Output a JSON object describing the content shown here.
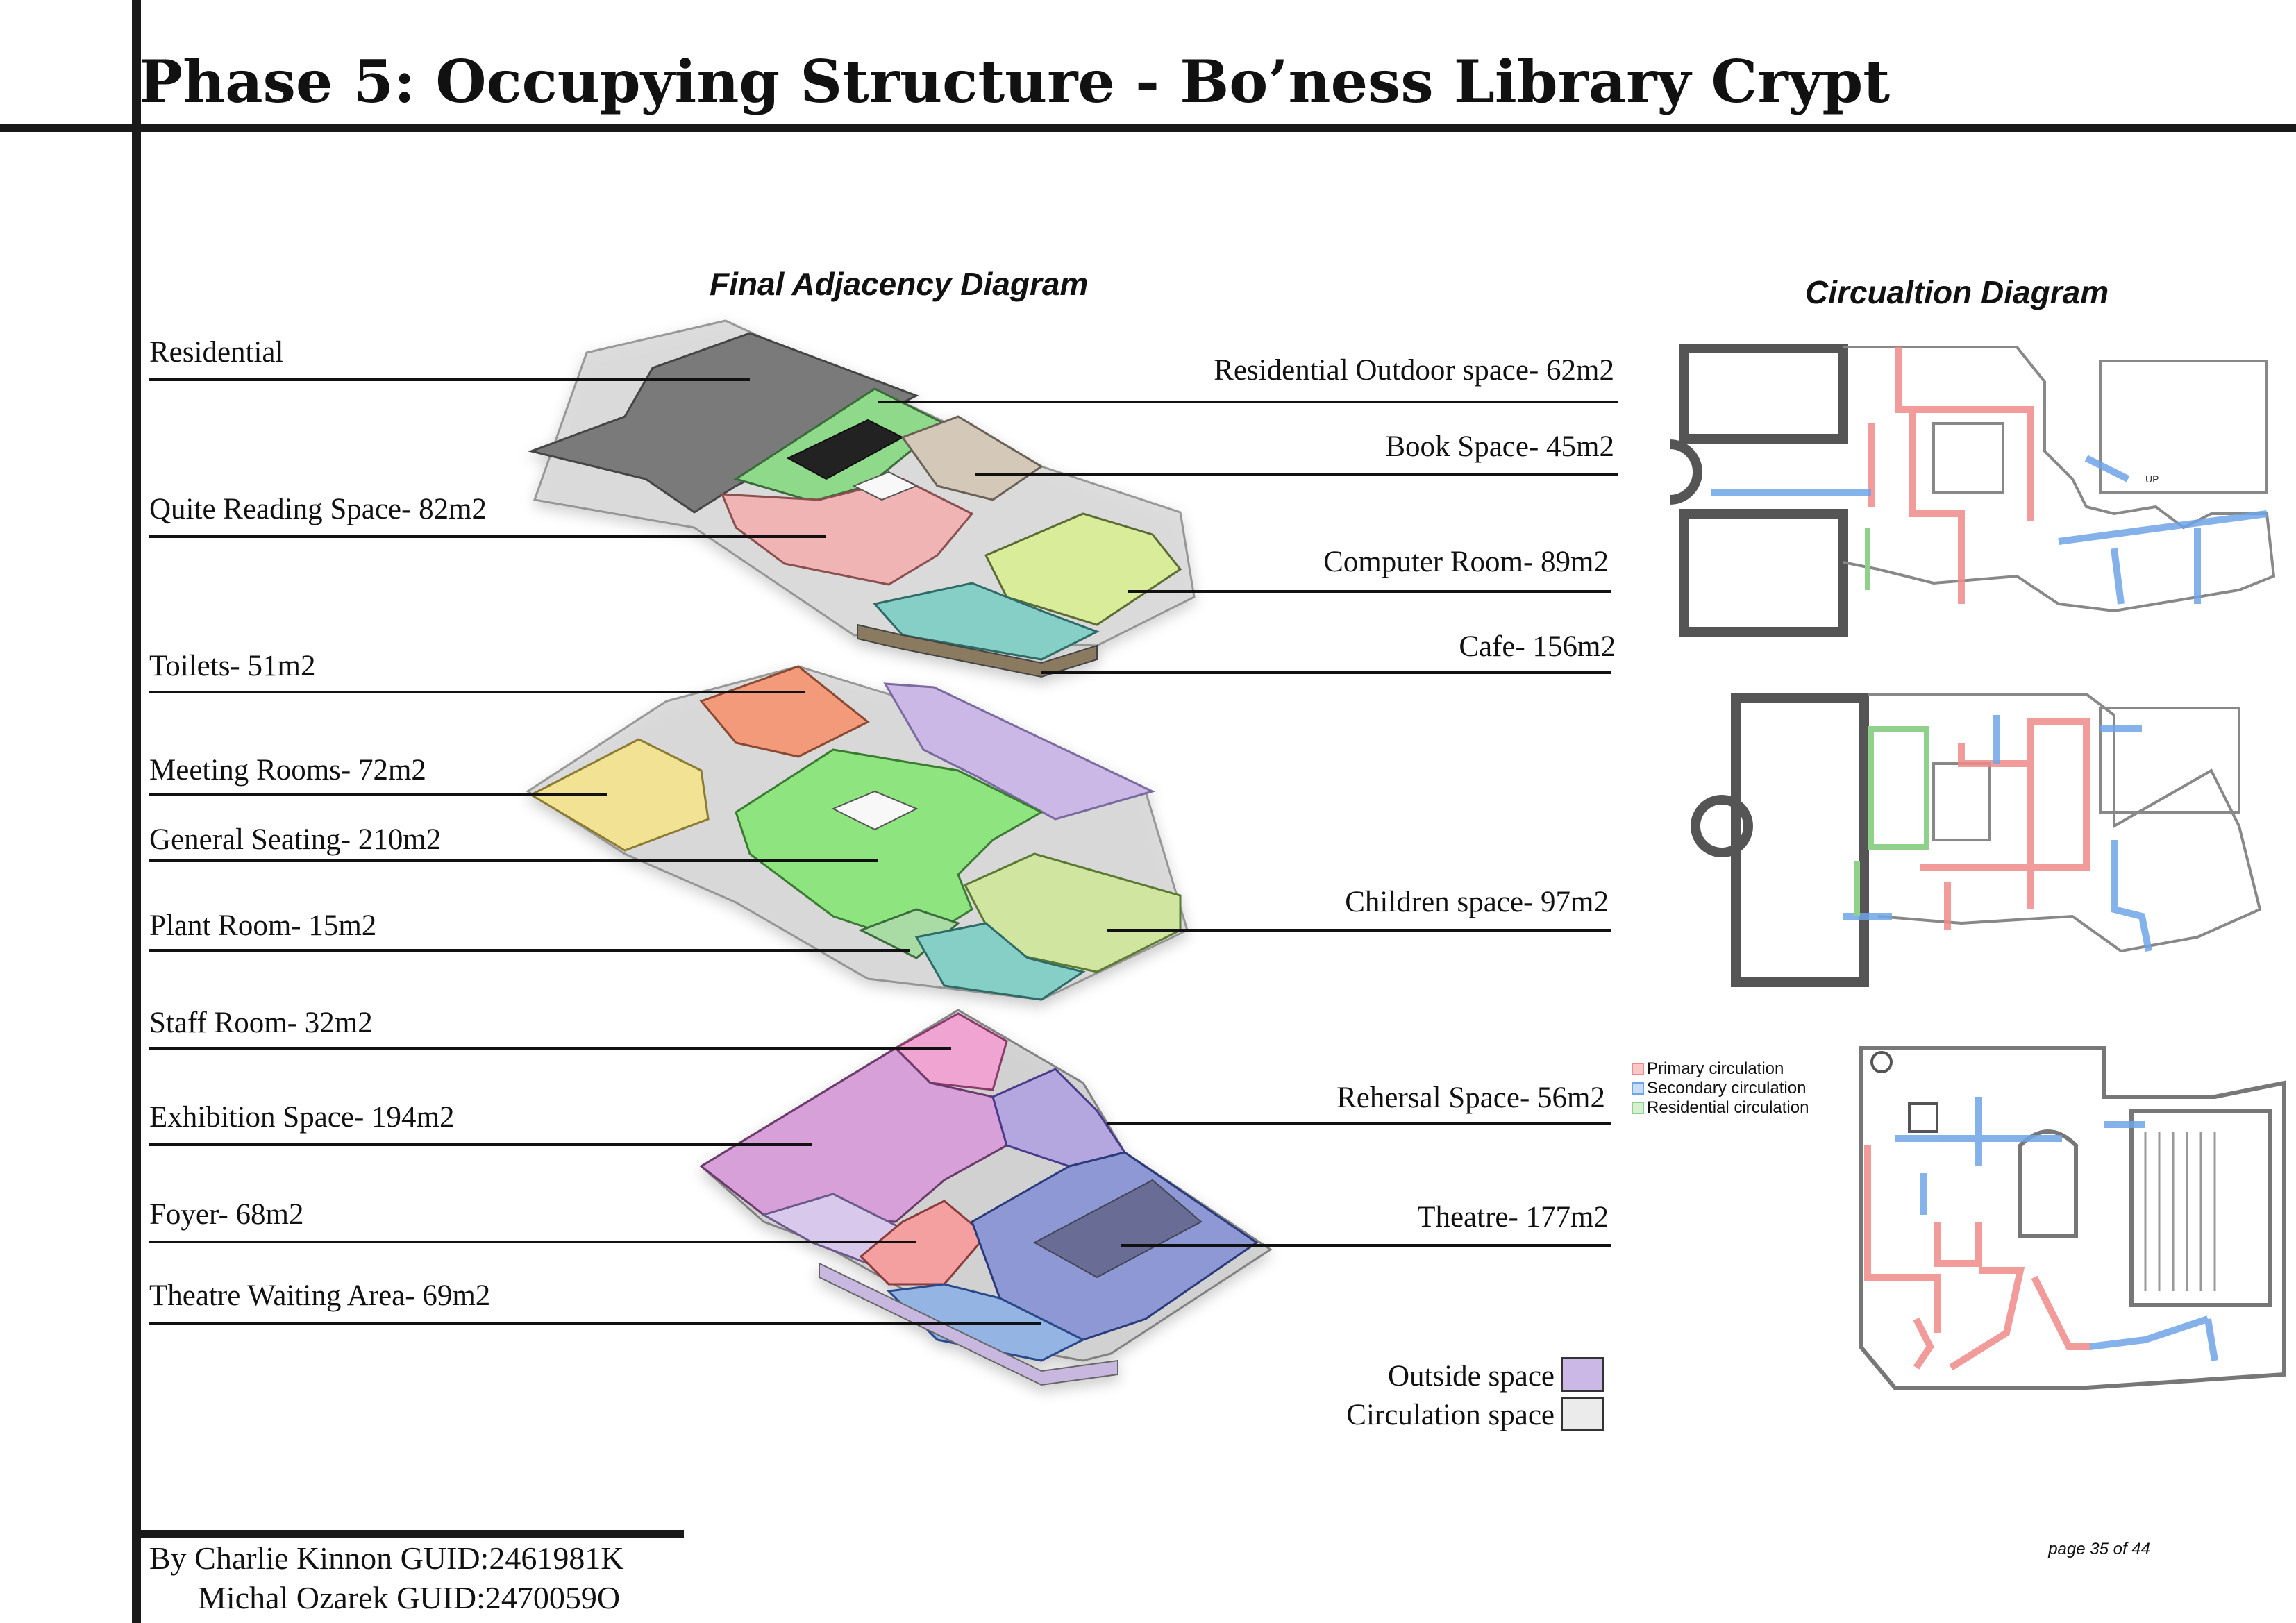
{
  "title": "Phase 5: Occupying Structure - Bo’ness Library Crypt",
  "adjacency_title": "Final Adjacency Diagram",
  "circulation_title": "Circualtion Diagram",
  "left_labels": [
    {
      "text": "Residential"
    },
    {
      "text": "Quite Reading Space- 82m2"
    },
    {
      "text": "Toilets- 51m2"
    },
    {
      "text": "Meeting Rooms- 72m2"
    },
    {
      "text": "General Seating- 210m2"
    },
    {
      "text": "Plant Room- 15m2"
    },
    {
      "text": "Staff Room- 32m2"
    },
    {
      "text": "Exhibition Space- 194m2"
    },
    {
      "text": "Foyer- 68m2"
    },
    {
      "text": "Theatre Waiting Area- 69m2"
    }
  ],
  "right_labels": [
    {
      "text": "Residential Outdoor space- 62m2"
    },
    {
      "text": "Book Space- 45m2"
    },
    {
      "text": "Computer Room- 89m2"
    },
    {
      "text": "Cafe- 156m2"
    },
    {
      "text": "Children space- 97m2"
    },
    {
      "text": "Rehersal Space- 56m2"
    },
    {
      "text": "Theatre- 177m2"
    }
  ],
  "key": {
    "outside": "Outside space",
    "circulation": "Circulation space",
    "outside_color": "#cbb8e6",
    "circulation_color": "#ebebeb"
  },
  "circulation_legend": [
    {
      "text": "Primary circulation",
      "color": "#f08a8a"
    },
    {
      "text": "Secondary circulation",
      "color": "#6fa4e6"
    },
    {
      "text": "Residential circulation",
      "color": "#8fd18a"
    }
  ],
  "plan_marks": {
    "up": "UP"
  },
  "credits": {
    "line1": "By Charlie Kinnon GUID:2461981K",
    "line2": "Michal Ozarek GUID:2470059O"
  },
  "page": "page  35  of  44",
  "colors": {
    "residential": "#6e6e6e",
    "outdoor": "#8fd98a",
    "book": "#d4c8b8",
    "reading": "#f0b4b4",
    "computer": "#d8ec9a",
    "cafe": "#86cfc6",
    "toilets": "#f29a7a",
    "meeting": "#f2e394",
    "general": "#8ee47e",
    "children": "#cfe5a0",
    "plant": "#a9dca4",
    "staff": "#f0a4d2",
    "exhibition": "#d8a0d8",
    "foyer": "#f4a0a0",
    "waiting": "#94b4e4",
    "rehearsal": "#b4a6de",
    "theatre": "#8e98d4"
  }
}
